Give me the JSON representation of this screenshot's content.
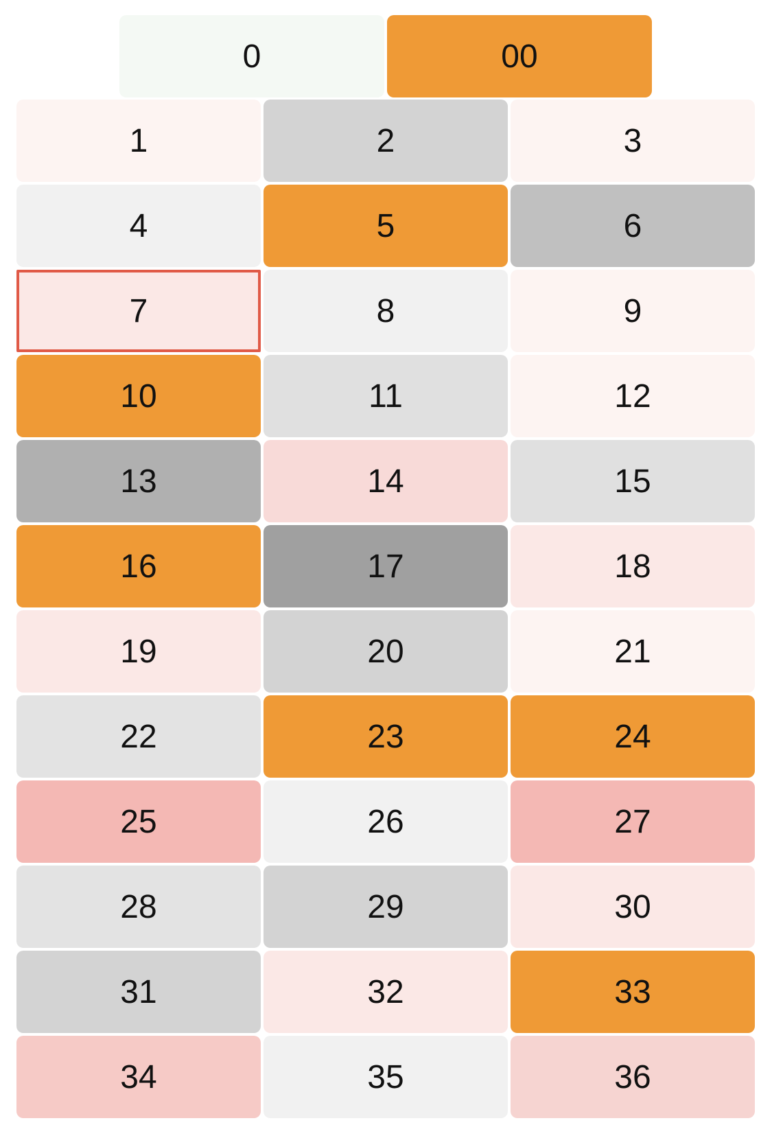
{
  "zero_row": [
    {
      "label": "0",
      "bg": "#f4f9f4"
    },
    {
      "label": "00",
      "bg": "#ef9a36"
    }
  ],
  "grid": [
    {
      "label": "1",
      "bg": "#fdf4f2"
    },
    {
      "label": "2",
      "bg": "#d3d3d3"
    },
    {
      "label": "3",
      "bg": "#fdf4f2"
    },
    {
      "label": "4",
      "bg": "#f1f1f1"
    },
    {
      "label": "5",
      "bg": "#ef9a36"
    },
    {
      "label": "6",
      "bg": "#c0c0c0"
    },
    {
      "label": "7",
      "bg": "#fbe8e6",
      "selected": true,
      "border_color": "#e05a47"
    },
    {
      "label": "8",
      "bg": "#f1f1f1"
    },
    {
      "label": "9",
      "bg": "#fdf4f2"
    },
    {
      "label": "10",
      "bg": "#ef9a36"
    },
    {
      "label": "11",
      "bg": "#e0e0e0"
    },
    {
      "label": "12",
      "bg": "#fdf4f2"
    },
    {
      "label": "13",
      "bg": "#b0b0b0"
    },
    {
      "label": "14",
      "bg": "#f8dad8"
    },
    {
      "label": "15",
      "bg": "#e0e0e0"
    },
    {
      "label": "16",
      "bg": "#ef9a36"
    },
    {
      "label": "17",
      "bg": "#a0a0a0"
    },
    {
      "label": "18",
      "bg": "#fbe8e6"
    },
    {
      "label": "19",
      "bg": "#fbe8e6"
    },
    {
      "label": "20",
      "bg": "#d3d3d3"
    },
    {
      "label": "21",
      "bg": "#fdf4f2"
    },
    {
      "label": "22",
      "bg": "#e3e3e3"
    },
    {
      "label": "23",
      "bg": "#ef9a36"
    },
    {
      "label": "24",
      "bg": "#ef9a36"
    },
    {
      "label": "25",
      "bg": "#f4b8b4"
    },
    {
      "label": "26",
      "bg": "#f1f1f1"
    },
    {
      "label": "27",
      "bg": "#f4b8b4"
    },
    {
      "label": "28",
      "bg": "#e3e3e3"
    },
    {
      "label": "29",
      "bg": "#d3d3d3"
    },
    {
      "label": "30",
      "bg": "#fbe8e6"
    },
    {
      "label": "31",
      "bg": "#d3d3d3"
    },
    {
      "label": "32",
      "bg": "#fbe8e6"
    },
    {
      "label": "33",
      "bg": "#ef9a36"
    },
    {
      "label": "34",
      "bg": "#f6cac6"
    },
    {
      "label": "35",
      "bg": "#f1f1f1"
    },
    {
      "label": "36",
      "bg": "#f6d4d1"
    }
  ]
}
